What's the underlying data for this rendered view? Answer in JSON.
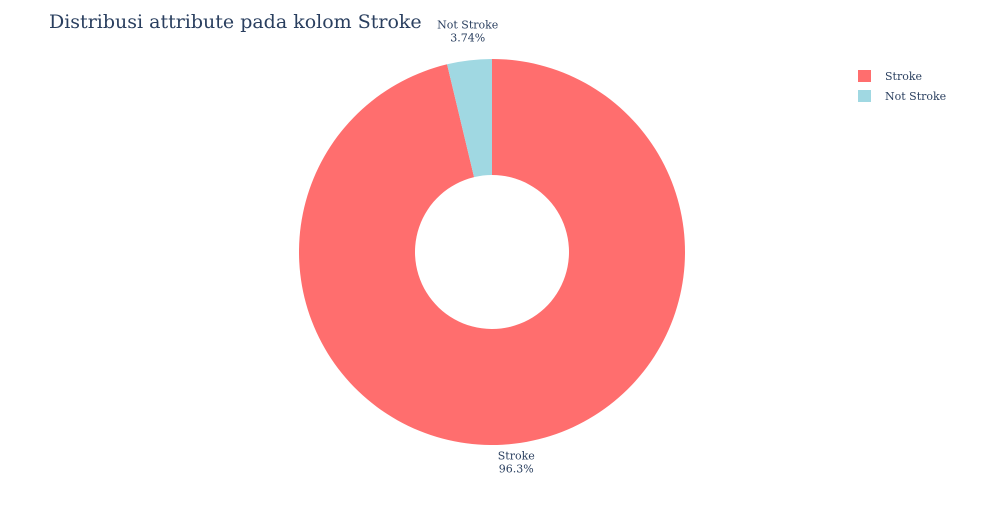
{
  "chart_data": {
    "type": "pie",
    "hole": true,
    "title": "Distribusi attribute pada kolom Stroke",
    "slices": [
      {
        "label": "Stroke",
        "value": 96.26,
        "text": "96.3%",
        "color": "#ff6e6e"
      },
      {
        "label": "Not Stroke",
        "value": 3.74,
        "text": "3.74%",
        "color": "#a0d8e2"
      }
    ],
    "legend_position": "top-right",
    "legend": [
      {
        "label": "Stroke",
        "color": "#ff6e6e"
      },
      {
        "label": "Not Stroke",
        "color": "#a0d8e2"
      }
    ]
  }
}
